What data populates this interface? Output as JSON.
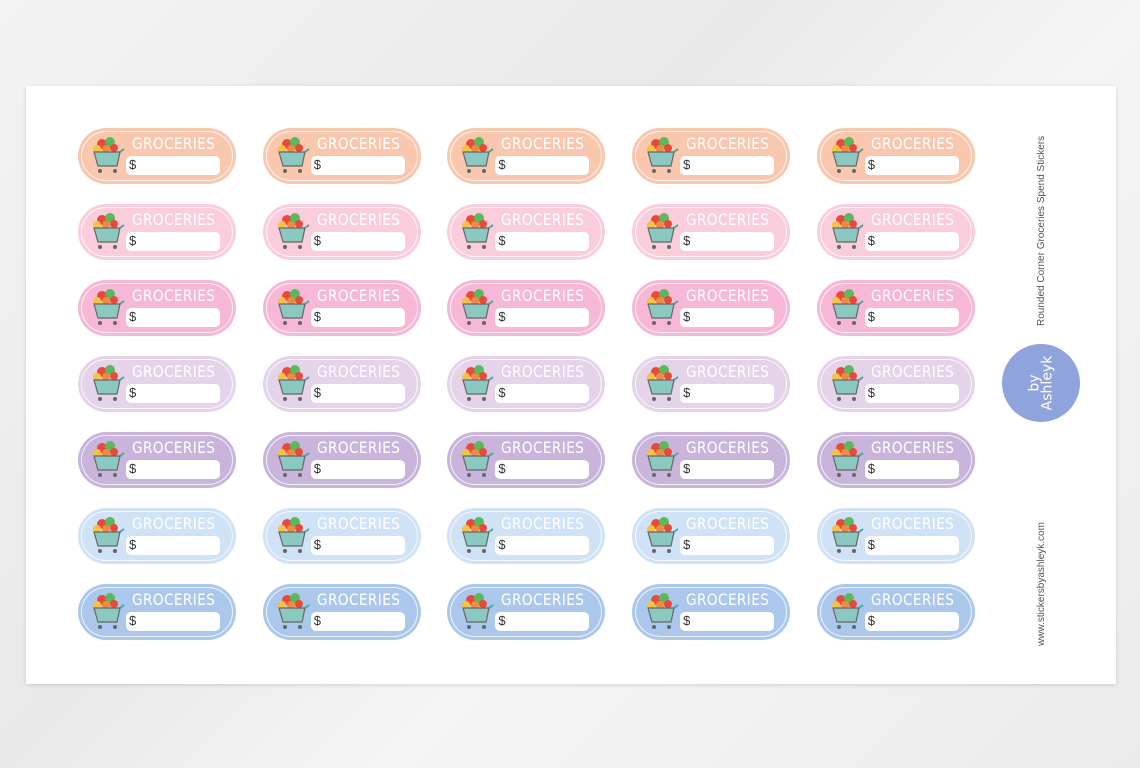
{
  "sticker": {
    "title": "GROCERIES",
    "currency": "$"
  },
  "row_colors": [
    "#f9c7ae",
    "#f9cddc",
    "#f7b7d6",
    "#e4d3e9",
    "#c9b4db",
    "#cfe2f6",
    "#abc8ec"
  ],
  "columns": 5,
  "sheet": {
    "product_name": "Rounded Corner Groceries Spend Stickers",
    "website": "www.stickersbyashleyk.com",
    "logo_text": "by Ashleyk"
  }
}
